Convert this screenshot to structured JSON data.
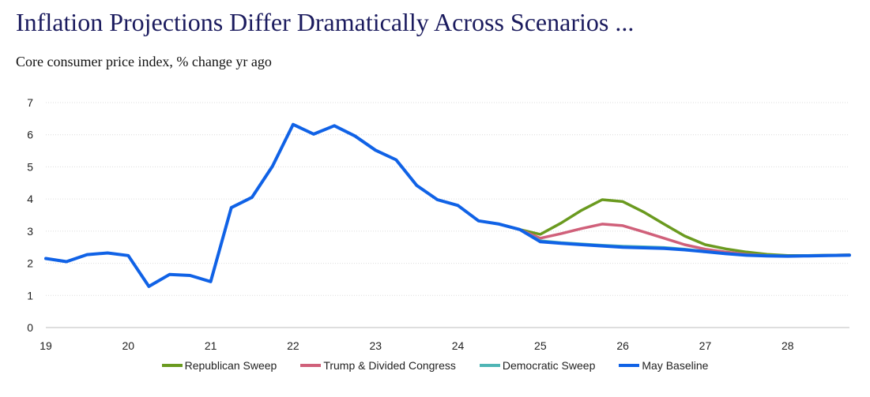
{
  "chart_data": {
    "type": "line",
    "title": "Inflation Projections Differ Dramatically Across Scenarios ...",
    "subtitle": "Core consumer price index, % change yr ago",
    "xlabel": "",
    "ylabel": "",
    "xlim": [
      19,
      28.75
    ],
    "ylim": [
      0,
      7
    ],
    "grid": true,
    "legend_position": "bottom",
    "x_ticks": [
      19,
      20,
      21,
      22,
      23,
      24,
      25,
      26,
      27,
      28
    ],
    "x_tick_labels": [
      "19",
      "20",
      "21",
      "22",
      "23",
      "24",
      "25",
      "26",
      "27",
      "28"
    ],
    "y_ticks": [
      0,
      1,
      2,
      3,
      4,
      5,
      6,
      7
    ],
    "y_tick_labels": [
      "0",
      "1",
      "2",
      "3",
      "4",
      "5",
      "6",
      "7"
    ],
    "series": [
      {
        "name": "Republican Sweep",
        "color": "#6a9a1f",
        "x": [
          24.5,
          24.75,
          25.0,
          25.25,
          25.5,
          25.75,
          26.0,
          26.25,
          26.5,
          26.75,
          27.0,
          27.25,
          27.5,
          27.75,
          28.0,
          28.25,
          28.5,
          28.75
        ],
        "values": [
          3.22,
          3.05,
          2.9,
          3.25,
          3.65,
          3.98,
          3.92,
          3.6,
          3.22,
          2.85,
          2.58,
          2.45,
          2.35,
          2.28,
          2.24,
          2.24,
          2.25,
          2.26
        ]
      },
      {
        "name": "Trump & Divided Congress",
        "color": "#d0607a",
        "x": [
          24.5,
          24.75,
          25.0,
          25.25,
          25.5,
          25.75,
          26.0,
          26.25,
          26.5,
          26.75,
          27.0,
          27.25,
          27.5,
          27.75,
          28.0,
          28.25,
          28.5,
          28.75
        ],
        "values": [
          3.22,
          3.05,
          2.78,
          2.92,
          3.08,
          3.22,
          3.17,
          2.98,
          2.78,
          2.58,
          2.44,
          2.35,
          2.28,
          2.24,
          2.22,
          2.23,
          2.25,
          2.26
        ]
      },
      {
        "name": "Democratic Sweep",
        "color": "#4fb5b5",
        "x": [
          24.5,
          24.75,
          25.0,
          25.25,
          25.5,
          25.75,
          26.0,
          26.25,
          26.5,
          26.75,
          27.0,
          27.25,
          27.5,
          27.75,
          28.0,
          28.25,
          28.5,
          28.75
        ],
        "values": [
          3.22,
          3.05,
          2.7,
          2.64,
          2.6,
          2.56,
          2.53,
          2.51,
          2.49,
          2.44,
          2.37,
          2.3,
          2.26,
          2.24,
          2.23,
          2.24,
          2.25,
          2.26
        ]
      },
      {
        "name": "May Baseline",
        "color": "#1062e6",
        "x": [
          19.0,
          19.25,
          19.5,
          19.75,
          20.0,
          20.25,
          20.5,
          20.75,
          21.0,
          21.25,
          21.5,
          21.75,
          22.0,
          22.25,
          22.5,
          22.75,
          23.0,
          23.25,
          23.5,
          23.75,
          24.0,
          24.25,
          24.5,
          24.75,
          25.0,
          25.25,
          25.5,
          25.75,
          26.0,
          26.25,
          26.5,
          26.75,
          27.0,
          27.25,
          27.5,
          27.75,
          28.0,
          28.25,
          28.5,
          28.75
        ],
        "values": [
          2.15,
          2.05,
          2.27,
          2.32,
          2.24,
          1.28,
          1.65,
          1.62,
          1.43,
          3.73,
          4.05,
          5.02,
          6.32,
          6.02,
          6.28,
          5.96,
          5.52,
          5.22,
          4.42,
          3.98,
          3.8,
          3.32,
          3.22,
          3.05,
          2.67,
          2.62,
          2.58,
          2.54,
          2.5,
          2.48,
          2.46,
          2.42,
          2.36,
          2.3,
          2.25,
          2.23,
          2.22,
          2.23,
          2.24,
          2.25
        ]
      }
    ]
  }
}
